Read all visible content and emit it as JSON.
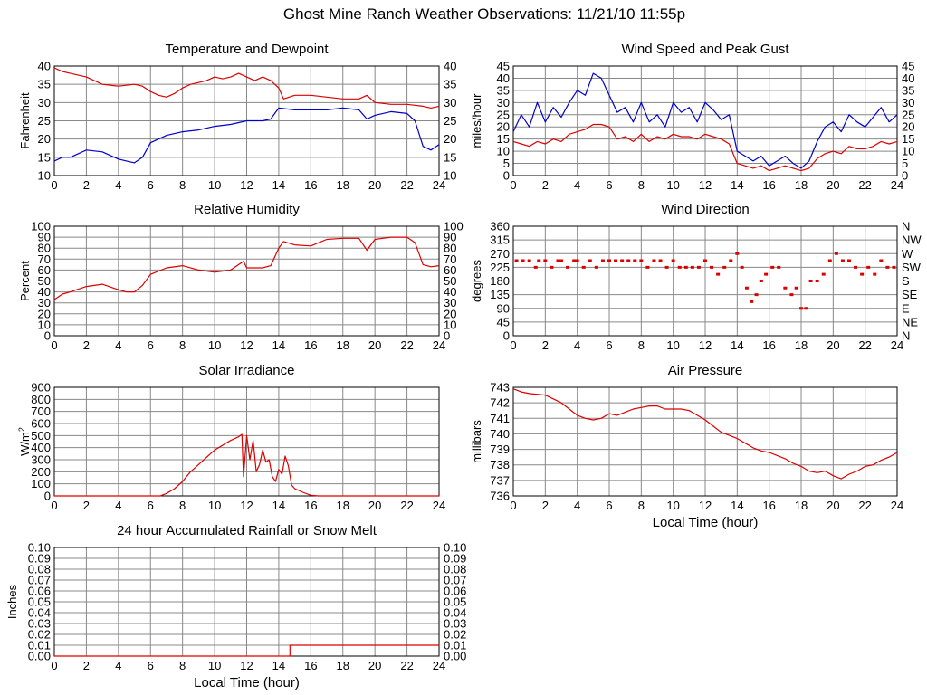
{
  "page": {
    "title": "Ghost Mine Ranch Weather Observations: 11/21/10 11:55p"
  },
  "chart_data": [
    {
      "id": "temperature",
      "type": "line",
      "title": "Temperature and Dewpoint",
      "xlabel": "",
      "ylabel": "Fahrenheit",
      "xlim": [
        0,
        24
      ],
      "ylim": [
        10,
        40
      ],
      "xticks": [
        0,
        2,
        4,
        6,
        8,
        10,
        12,
        14,
        16,
        18,
        20,
        22,
        24
      ],
      "yticks": [
        10,
        15,
        20,
        25,
        30,
        35,
        40
      ],
      "right_axis_labels": [
        "10",
        "15",
        "20",
        "25",
        "30",
        "35",
        "40"
      ],
      "grid": true,
      "series": [
        {
          "color": "#dd0000",
          "x": [
            0,
            0.5,
            1,
            2,
            3,
            4,
            5,
            5.5,
            6,
            6.5,
            7,
            7.5,
            8,
            8.5,
            9,
            9.5,
            10,
            10.5,
            11,
            11.5,
            12,
            12.5,
            13,
            13.5,
            14,
            14.3,
            15,
            16,
            17,
            18,
            19,
            19.5,
            20,
            21,
            22,
            23,
            23.5,
            24
          ],
          "y": [
            39.5,
            38.5,
            38,
            37,
            35,
            34.5,
            35,
            34.5,
            33,
            32,
            31.5,
            32.5,
            34,
            35,
            35.5,
            36,
            37,
            36.5,
            37,
            38,
            37,
            36,
            37,
            36,
            34,
            31,
            32,
            32,
            31.5,
            31,
            31,
            32,
            30,
            29.5,
            29.5,
            29,
            28.5,
            29
          ]
        },
        {
          "color": "#0000cc",
          "x": [
            0,
            0.5,
            1,
            2,
            3,
            4,
            4.5,
            5,
            5.5,
            6,
            7,
            8,
            9,
            10,
            11,
            12,
            13,
            13.5,
            14,
            15,
            16,
            17,
            18,
            19,
            19.5,
            20,
            21,
            22,
            22.5,
            23,
            23.5,
            24
          ],
          "y": [
            14,
            15,
            15,
            17,
            16.5,
            14.5,
            14,
            13.5,
            15,
            19,
            21,
            22,
            22.5,
            23.5,
            24,
            25,
            25,
            25.5,
            28.5,
            28,
            28,
            28,
            28.5,
            28,
            25.5,
            26.5,
            27.5,
            27,
            25,
            18,
            17,
            18.5
          ]
        }
      ]
    },
    {
      "id": "wind-speed",
      "type": "line",
      "title": "Wind Speed and Peak Gust",
      "xlabel": "",
      "ylabel": "miles/hour",
      "xlim": [
        0,
        24
      ],
      "ylim": [
        0,
        45
      ],
      "xticks": [
        0,
        2,
        4,
        6,
        8,
        10,
        12,
        14,
        16,
        18,
        20,
        22,
        24
      ],
      "yticks": [
        0,
        5,
        10,
        15,
        20,
        25,
        30,
        35,
        40,
        45
      ],
      "right_axis_labels": [
        "0",
        "5",
        "10",
        "15",
        "20",
        "25",
        "30",
        "35",
        "40",
        "45"
      ],
      "grid": true,
      "series": [
        {
          "color": "#0000cc",
          "x": [
            0,
            0.5,
            1,
            1.5,
            2,
            2.5,
            3,
            3.5,
            4,
            4.5,
            5,
            5.5,
            6,
            6.5,
            7,
            7.5,
            8,
            8.5,
            9,
            9.5,
            10,
            10.5,
            11,
            11.5,
            12,
            12.5,
            13,
            13.5,
            14,
            14.5,
            15,
            15.5,
            16,
            16.5,
            17,
            17.5,
            18,
            18.5,
            19,
            19.5,
            20,
            20.5,
            21,
            21.5,
            22,
            22.5,
            23,
            23.5,
            24
          ],
          "y": [
            18,
            25,
            20,
            30,
            22,
            28,
            24,
            30,
            35,
            33,
            42,
            40,
            33,
            26,
            28,
            22,
            30,
            22,
            25,
            20,
            30,
            26,
            28,
            22,
            30,
            27,
            23,
            25,
            10,
            8,
            6,
            8,
            4,
            6,
            8,
            5,
            3,
            6,
            14,
            20,
            22,
            18,
            25,
            22,
            20,
            24,
            28,
            22,
            25
          ]
        },
        {
          "color": "#dd0000",
          "x": [
            0,
            0.5,
            1,
            1.5,
            2,
            2.5,
            3,
            3.5,
            4,
            4.5,
            5,
            5.5,
            6,
            6.5,
            7,
            7.5,
            8,
            8.5,
            9,
            9.5,
            10,
            10.5,
            11,
            11.5,
            12,
            12.5,
            13,
            13.5,
            14,
            14.5,
            15,
            15.5,
            16,
            16.5,
            17,
            17.5,
            18,
            18.5,
            19,
            19.5,
            20,
            20.5,
            21,
            21.5,
            22,
            22.5,
            23,
            23.5,
            24
          ],
          "y": [
            14,
            13,
            12,
            14,
            13,
            15,
            14,
            17,
            18,
            19,
            21,
            21,
            20,
            15,
            16,
            14,
            17,
            14,
            16,
            15,
            17,
            16,
            16,
            15,
            17,
            16,
            15,
            13,
            5,
            4,
            3,
            4,
            2,
            3,
            4,
            3,
            2,
            3,
            7,
            9,
            10,
            9,
            12,
            11,
            11,
            12,
            14,
            13,
            14
          ]
        }
      ]
    },
    {
      "id": "humidity",
      "type": "line",
      "title": "Relative Humidity",
      "xlabel": "",
      "ylabel": "Percent",
      "xlim": [
        0,
        24
      ],
      "ylim": [
        0,
        100
      ],
      "xticks": [
        0,
        2,
        4,
        6,
        8,
        10,
        12,
        14,
        16,
        18,
        20,
        22,
        24
      ],
      "yticks": [
        0,
        10,
        20,
        30,
        40,
        50,
        60,
        70,
        80,
        90,
        100
      ],
      "right_axis_labels": [
        "0",
        "10",
        "20",
        "30",
        "40",
        "50",
        "60",
        "70",
        "80",
        "90",
        "100"
      ],
      "grid": true,
      "series": [
        {
          "color": "#dd0000",
          "x": [
            0,
            0.5,
            1,
            2,
            3,
            4,
            4.5,
            5,
            5.5,
            6,
            7,
            8,
            9,
            10,
            11,
            11.8,
            12,
            13,
            13.5,
            14,
            14.3,
            15,
            16,
            16.5,
            17,
            18,
            19,
            19.5,
            20,
            20.5,
            21,
            22,
            22.5,
            23,
            23.5,
            24
          ],
          "y": [
            33,
            38,
            40,
            45,
            47,
            42,
            40,
            40,
            46,
            56,
            62,
            64,
            60,
            58,
            60,
            68,
            62,
            62,
            64,
            80,
            86,
            83,
            82,
            85,
            88,
            89,
            89,
            78,
            88,
            89,
            90,
            90,
            85,
            65,
            63,
            64
          ]
        }
      ]
    },
    {
      "id": "wind-direction",
      "type": "scatter",
      "title": "Wind Direction",
      "xlabel": "",
      "ylabel": "degrees",
      "xlim": [
        0,
        24
      ],
      "ylim": [
        0,
        360
      ],
      "xticks": [
        0,
        2,
        4,
        6,
        8,
        10,
        12,
        14,
        16,
        18,
        20,
        22,
        24
      ],
      "yticks": [
        0,
        45,
        90,
        135,
        180,
        225,
        270,
        315,
        360
      ],
      "right_axis_labels": [
        "N",
        "NE",
        "E",
        "SE",
        "S",
        "SW",
        "W",
        "NW",
        "N"
      ],
      "grid": true,
      "series": [
        {
          "color": "#dd0000",
          "x": [
            0.2,
            0.6,
            1,
            1.4,
            1.6,
            2,
            2.4,
            2.8,
            3,
            3.4,
            3.8,
            4,
            4.4,
            4.8,
            5.2,
            5.6,
            6,
            6.4,
            6.8,
            7.2,
            7.6,
            8,
            8.4,
            8.8,
            9.2,
            9.6,
            10,
            10.4,
            10.8,
            11.2,
            11.6,
            12,
            12.4,
            12.8,
            13.2,
            13.6,
            14,
            14.3,
            14.6,
            14.9,
            15.2,
            15.5,
            15.8,
            16.2,
            16.6,
            17,
            17.4,
            17.7,
            18,
            18.3,
            18.6,
            19,
            19.4,
            19.8,
            20.2,
            20.6,
            21,
            21.4,
            21.8,
            22.2,
            22.6,
            23,
            23.4,
            23.8
          ],
          "y": [
            247,
            247,
            247,
            225,
            247,
            247,
            225,
            247,
            247,
            225,
            247,
            247,
            225,
            247,
            225,
            247,
            247,
            247,
            247,
            247,
            247,
            247,
            225,
            247,
            247,
            225,
            247,
            225,
            225,
            225,
            225,
            247,
            225,
            202,
            225,
            247,
            270,
            225,
            157,
            112,
            135,
            180,
            202,
            225,
            225,
            157,
            135,
            157,
            90,
            90,
            180,
            180,
            202,
            247,
            270,
            247,
            247,
            225,
            202,
            225,
            202,
            247,
            225,
            225
          ]
        }
      ]
    },
    {
      "id": "solar",
      "type": "line",
      "title": "Solar Irradiance",
      "xlabel": "",
      "ylabel": "W/m2",
      "xlim": [
        0,
        24
      ],
      "ylim": [
        0,
        900
      ],
      "xticks": [
        0,
        2,
        4,
        6,
        8,
        10,
        12,
        14,
        16,
        18,
        20,
        22,
        24
      ],
      "yticks": [
        0,
        100,
        200,
        300,
        400,
        500,
        600,
        700,
        800,
        900
      ],
      "right_axis_labels": [],
      "grid": true,
      "series": [
        {
          "color": "#dd0000",
          "x": [
            0,
            6.6,
            7,
            7.5,
            8,
            8.5,
            9,
            9.5,
            10,
            10.5,
            11,
            11.5,
            11.7,
            11.8,
            12,
            12.2,
            12.4,
            12.6,
            12.8,
            13,
            13.2,
            13.4,
            13.6,
            13.8,
            14,
            14.2,
            14.4,
            14.6,
            14.8,
            15,
            15.5,
            16,
            16.5,
            24
          ],
          "y": [
            0,
            0,
            20,
            60,
            120,
            200,
            260,
            320,
            380,
            420,
            460,
            490,
            510,
            160,
            500,
            300,
            460,
            200,
            260,
            380,
            280,
            300,
            160,
            120,
            220,
            180,
            330,
            250,
            90,
            60,
            30,
            5,
            0,
            0
          ]
        }
      ]
    },
    {
      "id": "pressure",
      "type": "line",
      "title": "Air Pressure",
      "xlabel": "Local Time (hour)",
      "ylabel": "millibars",
      "xlim": [
        0,
        24
      ],
      "ylim": [
        736,
        743
      ],
      "xticks": [
        0,
        2,
        4,
        6,
        8,
        10,
        12,
        14,
        16,
        18,
        20,
        22,
        24
      ],
      "yticks": [
        736,
        737,
        738,
        739,
        740,
        741,
        742,
        743
      ],
      "right_axis_labels": [],
      "grid": true,
      "series": [
        {
          "color": "#dd0000",
          "x": [
            0,
            0.5,
            1,
            2,
            3,
            3.5,
            4,
            4.5,
            5,
            5.5,
            6,
            6.5,
            7,
            7.5,
            8,
            8.5,
            9,
            9.5,
            10,
            10.5,
            11,
            11.5,
            12,
            12.5,
            13,
            13.5,
            14,
            14.5,
            15,
            15.5,
            16,
            16.5,
            17,
            17.5,
            18,
            18.5,
            19,
            19.5,
            20,
            20.5,
            21,
            21.5,
            22,
            22.5,
            23,
            23.5,
            24
          ],
          "y": [
            742.9,
            742.7,
            742.6,
            742.5,
            742,
            741.6,
            741.2,
            741,
            740.9,
            741,
            741.3,
            741.2,
            741.4,
            741.6,
            741.7,
            741.8,
            741.8,
            741.6,
            741.6,
            741.6,
            741.5,
            741.2,
            740.9,
            740.5,
            740.1,
            739.9,
            739.7,
            739.4,
            739.1,
            738.9,
            738.8,
            738.6,
            738.4,
            738.1,
            737.9,
            737.6,
            737.5,
            737.6,
            737.3,
            737.1,
            737.4,
            737.6,
            737.9,
            738,
            738.3,
            738.5,
            738.8
          ]
        }
      ]
    },
    {
      "id": "rainfall",
      "type": "line",
      "title": "24 hour Accumulated Rainfall or Snow Melt",
      "xlabel": "Local Time (hour)",
      "ylabel": "Inches",
      "xlim": [
        0,
        24
      ],
      "ylim": [
        0,
        0.1
      ],
      "xticks": [
        0,
        2,
        4,
        6,
        8,
        10,
        12,
        14,
        16,
        18,
        20,
        22,
        24
      ],
      "yticks": [
        0,
        0.01,
        0.02,
        0.03,
        0.04,
        0.05,
        0.06,
        0.07,
        0.08,
        0.09,
        0.1
      ],
      "ytick_labels": [
        "0.00",
        "0.01",
        "0.02",
        "0.03",
        "0.04",
        "0.05",
        "0.06",
        "0.07",
        "0.08",
        "0.09",
        "0.10"
      ],
      "right_axis_labels": [
        "0.00",
        "0.01",
        "0.02",
        "0.03",
        "0.04",
        "0.05",
        "0.06",
        "0.07",
        "0.08",
        "0.09",
        "0.10"
      ],
      "grid": true,
      "series": [
        {
          "color": "#dd0000",
          "x": [
            0,
            14.7,
            14.7,
            24
          ],
          "y": [
            0,
            0,
            0.01,
            0.01
          ]
        }
      ]
    }
  ]
}
